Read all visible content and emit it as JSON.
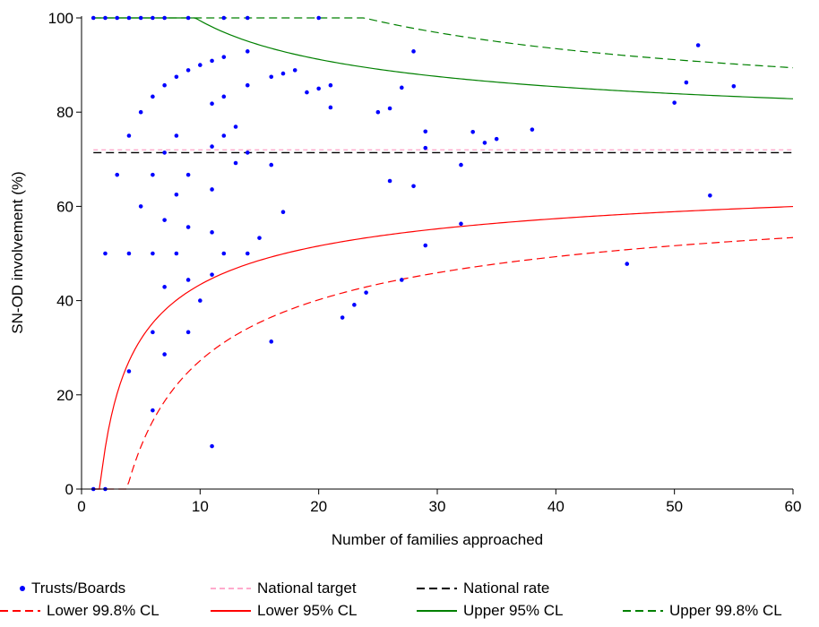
{
  "chart_data": {
    "type": "scatter",
    "title": "",
    "xlabel": "Number of families approached",
    "ylabel": "SN-OD involvement (%)",
    "xlim": [
      0,
      60
    ],
    "ylim": [
      0,
      100
    ],
    "x_ticks": [
      0,
      10,
      20,
      30,
      40,
      50,
      60
    ],
    "y_ticks": [
      0,
      20,
      40,
      60,
      80,
      100
    ],
    "grid": false,
    "legend_position": "bottom",
    "national_rate": 71.4,
    "national_target": 72,
    "series": [
      {
        "name": "Trusts/Boards",
        "kind": "points",
        "color": "#0000ff",
        "points": [
          [
            1,
            100
          ],
          [
            2,
            100
          ],
          [
            3,
            100
          ],
          [
            4,
            100
          ],
          [
            5,
            100
          ],
          [
            6,
            100
          ],
          [
            7,
            100
          ],
          [
            9,
            100
          ],
          [
            12,
            100
          ],
          [
            14,
            100
          ],
          [
            20,
            100
          ],
          [
            1,
            0
          ],
          [
            2,
            0
          ],
          [
            2,
            50
          ],
          [
            3,
            66.7
          ],
          [
            4,
            75
          ],
          [
            4,
            50
          ],
          [
            4,
            25
          ],
          [
            5,
            80
          ],
          [
            5,
            60
          ],
          [
            6,
            83.3
          ],
          [
            6,
            66.7
          ],
          [
            6,
            50
          ],
          [
            6,
            33.3
          ],
          [
            6,
            16.7
          ],
          [
            7,
            85.7
          ],
          [
            7,
            71.4
          ],
          [
            7,
            57.1
          ],
          [
            7,
            42.9
          ],
          [
            7,
            28.6
          ],
          [
            8,
            87.5
          ],
          [
            8,
            75
          ],
          [
            8,
            62.5
          ],
          [
            8,
            50
          ],
          [
            9,
            88.9
          ],
          [
            9,
            66.7
          ],
          [
            9,
            55.6
          ],
          [
            9,
            44.4
          ],
          [
            9,
            33.3
          ],
          [
            10,
            90
          ],
          [
            10,
            40
          ],
          [
            11,
            90.9
          ],
          [
            11,
            81.8
          ],
          [
            11,
            72.7
          ],
          [
            11,
            63.6
          ],
          [
            11,
            54.5
          ],
          [
            11,
            45.5
          ],
          [
            11,
            9.1
          ],
          [
            12,
            91.7
          ],
          [
            12,
            83.3
          ],
          [
            12,
            75
          ],
          [
            12,
            50
          ],
          [
            13,
            76.9
          ],
          [
            13,
            69.2
          ],
          [
            14,
            92.9
          ],
          [
            14,
            85.7
          ],
          [
            14,
            71.4
          ],
          [
            14,
            50
          ],
          [
            15,
            53.3
          ],
          [
            16,
            87.5
          ],
          [
            16,
            68.8
          ],
          [
            16,
            31.3
          ],
          [
            17,
            88.2
          ],
          [
            17,
            58.8
          ],
          [
            18,
            88.9
          ],
          [
            19,
            84.2
          ],
          [
            20,
            85
          ],
          [
            21,
            85.7
          ],
          [
            21,
            81
          ],
          [
            22,
            36.4
          ],
          [
            23,
            39.1
          ],
          [
            24,
            41.7
          ],
          [
            25,
            80
          ],
          [
            26,
            80.8
          ],
          [
            26,
            65.4
          ],
          [
            27,
            85.2
          ],
          [
            27,
            44.4
          ],
          [
            28,
            92.9
          ],
          [
            28,
            64.3
          ],
          [
            29,
            75.9
          ],
          [
            29,
            72.4
          ],
          [
            29,
            51.7
          ],
          [
            32,
            68.8
          ],
          [
            32,
            56.3
          ],
          [
            33,
            75.8
          ],
          [
            34,
            73.5
          ],
          [
            35,
            74.3
          ],
          [
            38,
            76.3
          ],
          [
            46,
            47.8
          ],
          [
            50,
            82
          ],
          [
            51,
            86.3
          ],
          [
            52,
            94.2
          ],
          [
            53,
            62.3
          ],
          [
            55,
            85.5
          ]
        ]
      },
      {
        "name": "National target",
        "kind": "hline",
        "color": "#ffaacc",
        "dash": "5,4",
        "value": 72
      },
      {
        "name": "National rate",
        "kind": "hline",
        "color": "#000000",
        "dash": "9,5",
        "value": 71.4
      },
      {
        "name": "Lower 99.8% CL",
        "kind": "curve",
        "color": "#ff0000",
        "dash": "9,5",
        "z": 3.09,
        "side": "lower"
      },
      {
        "name": "Lower 95% CL",
        "kind": "curve",
        "color": "#ff0000",
        "dash": "",
        "z": 1.96,
        "side": "lower"
      },
      {
        "name": "Upper 95% CL",
        "kind": "curve",
        "color": "#008000",
        "dash": "",
        "z": 1.96,
        "side": "upper"
      },
      {
        "name": "Upper 99.8% CL",
        "kind": "curve",
        "color": "#008000",
        "dash": "9,5",
        "z": 3.09,
        "side": "upper"
      }
    ]
  }
}
